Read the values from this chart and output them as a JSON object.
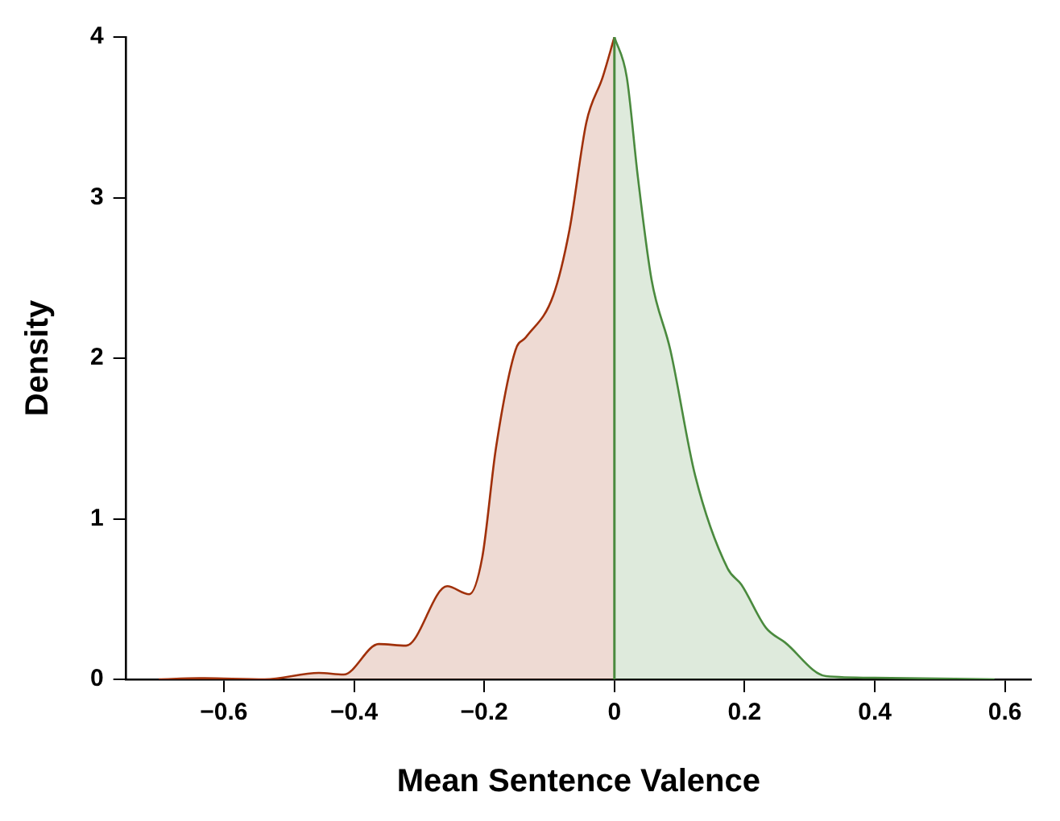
{
  "chart_data": {
    "type": "area",
    "xlabel": "Mean Sentence Valence",
    "ylabel": "Density",
    "xlim": [
      -0.75,
      0.64
    ],
    "xticks": [
      {
        "value": -0.6,
        "label": "−0.6"
      },
      {
        "value": -0.4,
        "label": "−0.4"
      },
      {
        "value": -0.2,
        "label": "−0.2"
      },
      0,
      0.2,
      0.4,
      0.6
    ],
    "ylim": [
      0,
      4
    ],
    "yticks": [
      0,
      1,
      2,
      3,
      4
    ],
    "grid": false,
    "legend": false,
    "marker": "none",
    "line_style": "solid",
    "series": [
      {
        "color": "#a0300a",
        "x": [
          -0.7,
          -0.638,
          -0.537,
          -0.454,
          -0.416,
          -0.362,
          -0.32,
          -0.257,
          -0.223,
          -0.203,
          -0.182,
          -0.152,
          -0.136,
          -0.094,
          -0.069,
          -0.043,
          -0.018,
          0
        ],
        "values": [
          0,
          0.007,
          0,
          0.04,
          0.03,
          0.22,
          0.21,
          0.58,
          0.53,
          0.76,
          1.44,
          2.05,
          2.13,
          2.39,
          2.8,
          3.47,
          3.75,
          4.0
        ]
      },
      {
        "color": "#4a8a3e",
        "x": [
          0,
          0.019,
          0.036,
          0.057,
          0.086,
          0.124,
          0.174,
          0.195,
          0.233,
          0.262,
          0.325,
          0.4,
          0.584
        ],
        "values": [
          4.0,
          3.75,
          3.13,
          2.49,
          2.05,
          1.27,
          0.69,
          0.59,
          0.32,
          0.23,
          0.02,
          0.01,
          0
        ]
      }
    ],
    "ref_lines": [
      {
        "axis": "x",
        "value": 0,
        "color": "#4a8a3e"
      }
    ]
  }
}
